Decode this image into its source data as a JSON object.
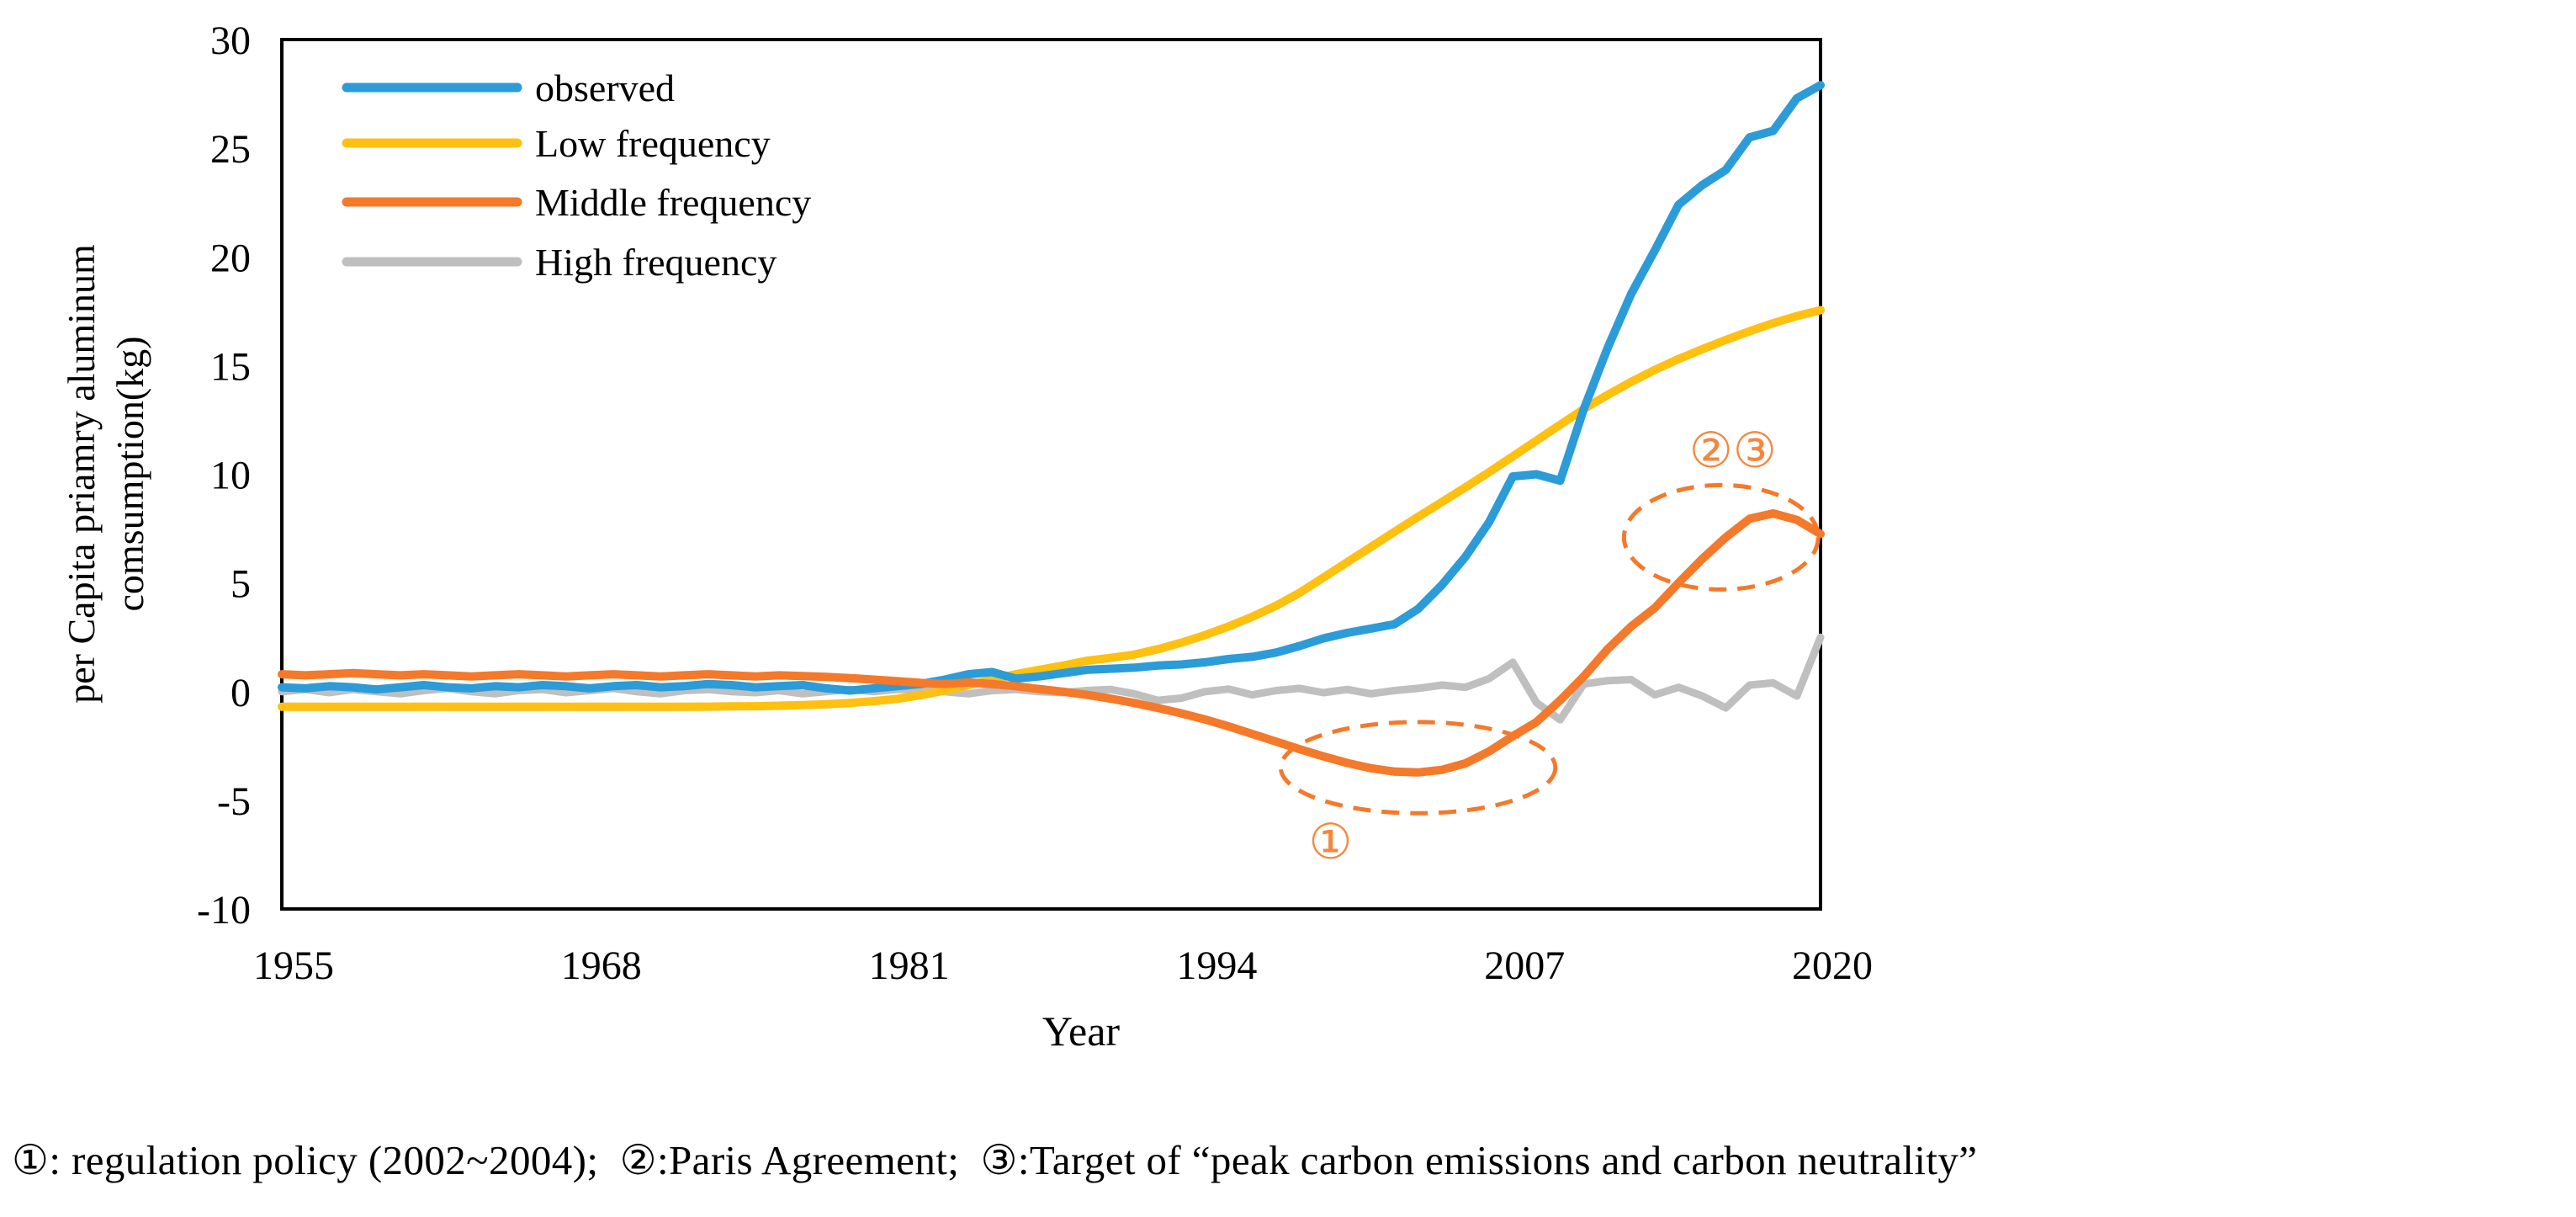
{
  "accent_color": "#F4792A",
  "axis_color": "#000000",
  "background_color": "#ffffff",
  "caption": {
    "text": "①: regulation policy (2002~2004);  ②:Paris Agreement;  ③:Target of “peak carbon emissions and carbon neutrality”"
  },
  "chart_data": {
    "type": "line",
    "title": "",
    "xlabel": "Year",
    "ylabel_line1": "per Capita priamry aluminum",
    "ylabel_line2": "comsumption(kg)",
    "xlim": [
      1955,
      2020
    ],
    "ylim": [
      -10,
      30
    ],
    "x_ticks": [
      "1955",
      "1968",
      "1981",
      "1994",
      "2007",
      "2020"
    ],
    "x_tick_years": [
      1955,
      1968,
      1981,
      1994,
      2007,
      2020
    ],
    "y_ticks": [
      "30",
      "25",
      "20",
      "15",
      "10",
      "5",
      "0",
      "-5",
      "-10"
    ],
    "y_tick_values": [
      30,
      25,
      20,
      15,
      10,
      5,
      0,
      -5,
      -10
    ],
    "grid": false,
    "legend_position": "top-left-inside",
    "years": [
      1955,
      1956,
      1957,
      1958,
      1959,
      1960,
      1961,
      1962,
      1963,
      1964,
      1965,
      1966,
      1967,
      1968,
      1969,
      1970,
      1971,
      1972,
      1973,
      1974,
      1975,
      1976,
      1977,
      1978,
      1979,
      1980,
      1981,
      1982,
      1983,
      1984,
      1985,
      1986,
      1987,
      1988,
      1989,
      1990,
      1991,
      1992,
      1993,
      1994,
      1995,
      1996,
      1997,
      1998,
      1999,
      2000,
      2001,
      2002,
      2003,
      2004,
      2005,
      2006,
      2007,
      2008,
      2009,
      2010,
      2011,
      2012,
      2013,
      2014,
      2015,
      2016,
      2017,
      2018,
      2019,
      2020
    ],
    "series": [
      {
        "name": "observed",
        "color": "#2B9CD8",
        "values": [
          0.2,
          0.15,
          0.25,
          0.2,
          0.1,
          0.2,
          0.3,
          0.2,
          0.15,
          0.25,
          0.2,
          0.3,
          0.25,
          0.15,
          0.25,
          0.3,
          0.2,
          0.25,
          0.35,
          0.3,
          0.2,
          0.25,
          0.3,
          0.15,
          0.05,
          0.15,
          0.25,
          0.35,
          0.55,
          0.8,
          0.9,
          0.6,
          0.7,
          0.85,
          1.0,
          1.05,
          1.1,
          1.2,
          1.25,
          1.35,
          1.5,
          1.6,
          1.8,
          2.1,
          2.45,
          2.7,
          2.9,
          3.1,
          3.8,
          4.9,
          6.2,
          7.8,
          9.9,
          10.0,
          9.7,
          13.0,
          15.8,
          18.3,
          20.3,
          22.4,
          23.3,
          24.0,
          25.5,
          25.8,
          27.3,
          27.9
        ]
      },
      {
        "name": "Low frequency",
        "color": "#FFC010",
        "values": [
          -0.7,
          -0.7,
          -0.7,
          -0.7,
          -0.7,
          -0.7,
          -0.7,
          -0.7,
          -0.7,
          -0.7,
          -0.7,
          -0.7,
          -0.7,
          -0.7,
          -0.7,
          -0.7,
          -0.7,
          -0.7,
          -0.69,
          -0.68,
          -0.67,
          -0.65,
          -0.62,
          -0.58,
          -0.52,
          -0.44,
          -0.33,
          -0.16,
          0.05,
          0.3,
          0.55,
          0.8,
          1.0,
          1.2,
          1.42,
          1.55,
          1.7,
          1.95,
          2.25,
          2.6,
          3.0,
          3.45,
          3.95,
          4.55,
          5.25,
          5.95,
          6.65,
          7.35,
          8.04,
          8.72,
          9.4,
          10.1,
          10.82,
          11.55,
          12.28,
          13.0,
          13.65,
          14.25,
          14.8,
          15.3,
          15.75,
          16.18,
          16.58,
          16.95,
          17.28,
          17.55
        ]
      },
      {
        "name": "Middle frequency",
        "color": "#F4792A",
        "values": [
          0.8,
          0.75,
          0.8,
          0.85,
          0.8,
          0.75,
          0.8,
          0.75,
          0.7,
          0.75,
          0.8,
          0.75,
          0.7,
          0.75,
          0.8,
          0.75,
          0.7,
          0.75,
          0.8,
          0.75,
          0.7,
          0.75,
          0.72,
          0.68,
          0.62,
          0.55,
          0.48,
          0.4,
          0.35,
          0.42,
          0.35,
          0.25,
          0.12,
          0.0,
          -0.15,
          -0.32,
          -0.52,
          -0.75,
          -1.0,
          -1.28,
          -1.6,
          -1.95,
          -2.3,
          -2.65,
          -2.98,
          -3.28,
          -3.52,
          -3.68,
          -3.72,
          -3.6,
          -3.3,
          -2.75,
          -2.05,
          -1.4,
          -0.4,
          0.7,
          1.95,
          3.0,
          3.85,
          5.0,
          6.1,
          7.1,
          7.95,
          8.2,
          7.9,
          7.25
        ]
      },
      {
        "name": "High frequency",
        "color": "#BFBFBF",
        "values": [
          0.0,
          0.1,
          -0.05,
          0.1,
          0.0,
          -0.1,
          0.05,
          0.15,
          0.0,
          -0.1,
          0.05,
          0.1,
          -0.05,
          0.05,
          0.15,
          0.0,
          -0.1,
          0.05,
          0.1,
          0.0,
          -0.05,
          0.05,
          -0.1,
          0.0,
          0.1,
          0.0,
          0.1,
          0.12,
          0.0,
          -0.1,
          0.05,
          0.1,
          0.0,
          -0.05,
          0.05,
          0.1,
          -0.1,
          -0.4,
          -0.3,
          0.0,
          0.12,
          -0.15,
          0.05,
          0.15,
          -0.05,
          0.1,
          -0.1,
          0.05,
          0.15,
          0.3,
          0.2,
          0.6,
          1.35,
          -0.5,
          -1.3,
          0.35,
          0.5,
          0.55,
          -0.15,
          0.2,
          -0.2,
          -0.75,
          0.3,
          0.4,
          -0.2,
          2.5
        ]
      }
    ],
    "annotations": [
      {
        "id": "dip",
        "label": "①",
        "label_year": 1999.3,
        "label_value": -6.9,
        "ellipse": {
          "cx_year": 2003.0,
          "cy_value": -3.5,
          "rx_years": 5.8,
          "ry_value": 2.1
        }
      },
      {
        "id": "peak",
        "label": "②③",
        "label_year": 2016.3,
        "label_value": 11.1,
        "ellipse": {
          "cx_year": 2015.8,
          "cy_value": 7.1,
          "rx_years": 4.1,
          "ry_value": 2.4
        }
      }
    ]
  }
}
